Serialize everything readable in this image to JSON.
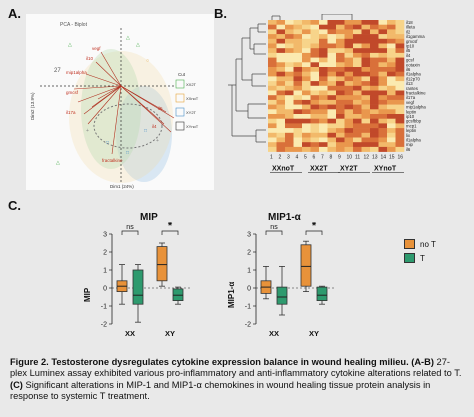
{
  "panels": {
    "a_label": "A.",
    "b_label": "B.",
    "c_label": "C."
  },
  "pca": {
    "title": "PCA - Biplot",
    "xlabel": "Dim1 (24%)",
    "ylabel": "Dim2 (13.9%)",
    "legend_title": "Cut",
    "legend_items": [
      "XX2T",
      "XXnoT",
      "XY2T",
      "XYnoT"
    ],
    "legend_colors": [
      "#4caf50",
      "#e5a53a",
      "#4a90c8",
      "#888888"
    ],
    "variables": [
      "vegf",
      "il10",
      "mip1alpha",
      "gmcsf",
      "il17a",
      "il5",
      "fractalkine",
      "il4"
    ]
  },
  "heatmap": {
    "row_labels": [
      "il18",
      "illeta",
      "il2",
      "il1gamma",
      "gmcsf",
      "ip10",
      "il5",
      "il4",
      "gcsf",
      "eotaxin",
      "il6",
      "il1alpha",
      "il12p70",
      "il13",
      "rantes",
      "fractalkine",
      "il17a",
      "vegf",
      "mip1alpha",
      "leptin",
      "ip10",
      "gcsfbbp",
      "mcp1",
      "leptin",
      "lix",
      "il1alpha",
      "mip",
      "il6"
    ],
    "col_numbers": [
      "1",
      "2",
      "3",
      "4",
      "5",
      "6",
      "7",
      "8",
      "9",
      "10",
      "11",
      "12",
      "13",
      "14",
      "15",
      "16"
    ],
    "groups": [
      "XXnoT",
      "XX2T",
      "XY2T",
      "XYnoT"
    ]
  },
  "chart_data": [
    {
      "type": "box",
      "title": "MIP",
      "ylabel": "MIP",
      "categories": [
        "XX",
        "XY"
      ],
      "ylim": [
        -2,
        3
      ],
      "yticks": [
        3,
        2,
        1,
        0,
        -1,
        -2
      ],
      "series": [
        {
          "name": "no T",
          "boxes": [
            {
              "min": -0.9,
              "q1": -0.2,
              "median": 0.1,
              "q3": 0.4,
              "max": 1.3
            },
            {
              "min": 0.1,
              "q1": 0.4,
              "median": 1.3,
              "q3": 2.3,
              "max": 2.5
            }
          ]
        },
        {
          "name": "T",
          "boxes": [
            {
              "min": -1.9,
              "q1": -0.9,
              "median": -0.4,
              "q3": 1.0,
              "max": 1.3
            },
            {
              "min": -0.9,
              "q1": -0.7,
              "median": -0.4,
              "q3": -0.05,
              "max": 0.05
            }
          ]
        }
      ],
      "annotations": {
        "xx": "ns",
        "xy": "*"
      }
    },
    {
      "type": "box",
      "title": "MIP1-α",
      "ylabel": "MIP1-α",
      "categories": [
        "XX",
        "XY"
      ],
      "ylim": [
        -2,
        3
      ],
      "yticks": [
        3,
        2,
        1,
        0,
        -1,
        -2
      ],
      "series": [
        {
          "name": "no T",
          "boxes": [
            {
              "min": -0.6,
              "q1": -0.3,
              "median": 0.05,
              "q3": 0.4,
              "max": 1.2
            },
            {
              "min": -0.2,
              "q1": 0.1,
              "median": 1.2,
              "q3": 2.4,
              "max": 2.6
            }
          ]
        },
        {
          "name": "T",
          "boxes": [
            {
              "min": -1.5,
              "q1": -0.9,
              "median": -0.5,
              "q3": 0.05,
              "max": 1.2
            },
            {
              "min": -0.9,
              "q1": -0.7,
              "median": -0.4,
              "q3": 0.05,
              "max": 0.1
            }
          ]
        }
      ],
      "annotations": {
        "xx": "ns",
        "xy": "*"
      }
    }
  ],
  "legend_c": {
    "no_t": "no T",
    "t": "T",
    "no_t_color": "#e8923a",
    "t_color": "#2e9a6e"
  },
  "caption": {
    "bold1": "Figure 2. Testosterone dysregulates cytokine expression balance in wound healing milieu. (A-B)",
    "normal1": " 27-plex Luminex assay exhibited various pro-inflammatory and  anti-inflammatory cytokine alterations related to T. ",
    "bold2": "(C)",
    "normal2": " Significant alterations in MIP-1 and MIP1-α chemokines in wound healing tissue protein analysis in response to systemic T treatment."
  }
}
